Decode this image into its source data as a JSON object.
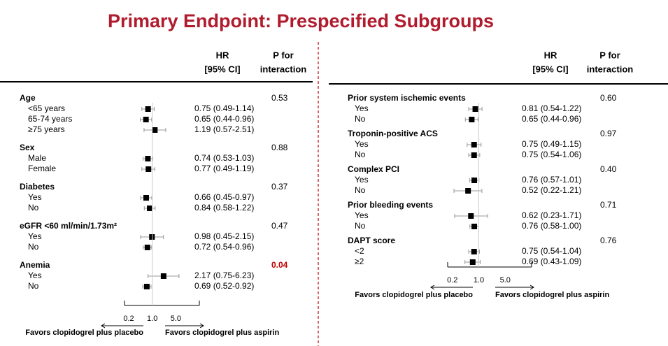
{
  "title": "Primary Endpoint: Prespecified Subgroups",
  "chart_data": [
    {
      "type": "forest",
      "hr_header": "HR",
      "ci_header": "[95% CI]",
      "p_header": "P for",
      "p_header_2": "interaction",
      "xscale": "log",
      "xlim": [
        0.15,
        25
      ],
      "xticks": [
        0.2,
        {
          "value": 1,
          "label": "1.0"
        },
        {
          "value": 5,
          "label": "5.0"
        }
      ],
      "marker_color": "#000000",
      "ci_color": "#999999",
      "favors_left": "Favors clopidogrel plus placebo",
      "favors_right": "Favors clopidogrel plus aspirin",
      "groups": [
        {
          "name": "Age",
          "p": "0.53",
          "rows": [
            {
              "label": "<65 years",
              "values": [
                0.75,
                0.49,
                1.14
              ],
              "value_label": "0.75 (0.49-1.14)"
            },
            {
              "label": "65-74 years",
              "values": [
                0.65,
                0.44,
                0.96
              ],
              "value_label": "0.65 (0.44-0.96)"
            },
            {
              "label": "≥75 years",
              "values": [
                1.19,
                0.57,
                2.51
              ],
              "value_label": "1.19 (0.57-2.51)"
            }
          ]
        },
        {
          "name": "Sex",
          "p": "0.88",
          "rows": [
            {
              "label": "Male",
              "values": [
                0.74,
                0.53,
                1.03
              ],
              "value_label": "0.74 (0.53-1.03)"
            },
            {
              "label": "Female",
              "values": [
                0.77,
                0.49,
                1.19
              ],
              "value_label": "0.77 (0.49-1.19)"
            }
          ]
        },
        {
          "name": "Diabetes",
          "p": "0.37",
          "rows": [
            {
              "label": "Yes",
              "values": [
                0.66,
                0.45,
                0.97
              ],
              "value_label": "0.66 (0.45-0.97)"
            },
            {
              "label": "No",
              "values": [
                0.84,
                0.58,
                1.22
              ],
              "value_label": "0.84 (0.58-1.22)"
            }
          ]
        },
        {
          "name": "eGFR <60 ml/min/1.73m²",
          "p": "0.47",
          "rows": [
            {
              "label": "Yes",
              "values": [
                0.98,
                0.45,
                2.15
              ],
              "value_label": "0.98 (0.45-2.15)"
            },
            {
              "label": "No",
              "values": [
                0.72,
                0.54,
                0.96
              ],
              "value_label": "0.72 (0.54-0.96)"
            }
          ]
        },
        {
          "name": "Anemia",
          "p": "0.04",
          "p_color": "#c00000",
          "rows": [
            {
              "label": "Yes",
              "values": [
                2.17,
                0.75,
                6.23
              ],
              "value_label": "2.17 (0.75-6.23)"
            },
            {
              "label": "No",
              "values": [
                0.69,
                0.52,
                0.92
              ],
              "value_label": "0.69 (0.52-0.92)"
            }
          ]
        }
      ]
    },
    {
      "type": "forest",
      "hr_header": "HR",
      "ci_header": "[95% CI]",
      "p_header": "P for",
      "p_header_2": "interaction",
      "xscale": "log",
      "xlim": [
        0.15,
        25
      ],
      "xticks": [
        0.2,
        {
          "value": 1,
          "label": "1.0"
        },
        {
          "value": 5,
          "label": "5.0"
        }
      ],
      "marker_color": "#000000",
      "ci_color": "#999999",
      "favors_left": "Favors clopidogrel plus placebo",
      "favors_right": "Favors clopidogrel plus aspirin",
      "groups": [
        {
          "name": "Prior system ischemic events",
          "p": "0.60",
          "rows": [
            {
              "label": "Yes",
              "values": [
                0.81,
                0.54,
                1.22
              ],
              "value_label": "0.81 (0.54-1.22)"
            },
            {
              "label": "No",
              "values": [
                0.65,
                0.44,
                0.96
              ],
              "value_label": "0.65 (0.44-0.96)"
            }
          ]
        },
        {
          "name": "Troponin-positive ACS",
          "p": "0.97",
          "rows": [
            {
              "label": "Yes",
              "values": [
                0.75,
                0.49,
                1.15
              ],
              "value_label": "0.75 (0.49-1.15)"
            },
            {
              "label": "No",
              "values": [
                0.75,
                0.54,
                1.06
              ],
              "value_label": "0.75 (0.54-1.06)"
            }
          ]
        },
        {
          "name": "Complex PCI",
          "p": "0.40",
          "rows": [
            {
              "label": "Yes",
              "values": [
                0.76,
                0.57,
                1.01
              ],
              "value_label": "0.76 (0.57-1.01)"
            },
            {
              "label": "No",
              "values": [
                0.52,
                0.22,
                1.21
              ],
              "value_label": "0.52 (0.22-1.21)"
            }
          ]
        },
        {
          "name": "Prior bleeding events",
          "p": "0.71",
          "rows": [
            {
              "label": "Yes",
              "values": [
                0.62,
                0.23,
                1.71
              ],
              "value_label": "0.62 (0.23-1.71)"
            },
            {
              "label": "No",
              "values": [
                0.76,
                0.58,
                1.0
              ],
              "value_label": "0.76 (0.58-1.00)"
            }
          ]
        },
        {
          "name": "DAPT score",
          "p": "0.76",
          "rows": [
            {
              "label": "<2",
              "values": [
                0.75,
                0.54,
                1.04
              ],
              "value_label": "0.75 (0.54-1.04)"
            },
            {
              "label": "≥2",
              "values": [
                0.69,
                0.43,
                1.09
              ],
              "value_label": "0.69 (0.43-1.09)"
            }
          ]
        }
      ]
    }
  ]
}
